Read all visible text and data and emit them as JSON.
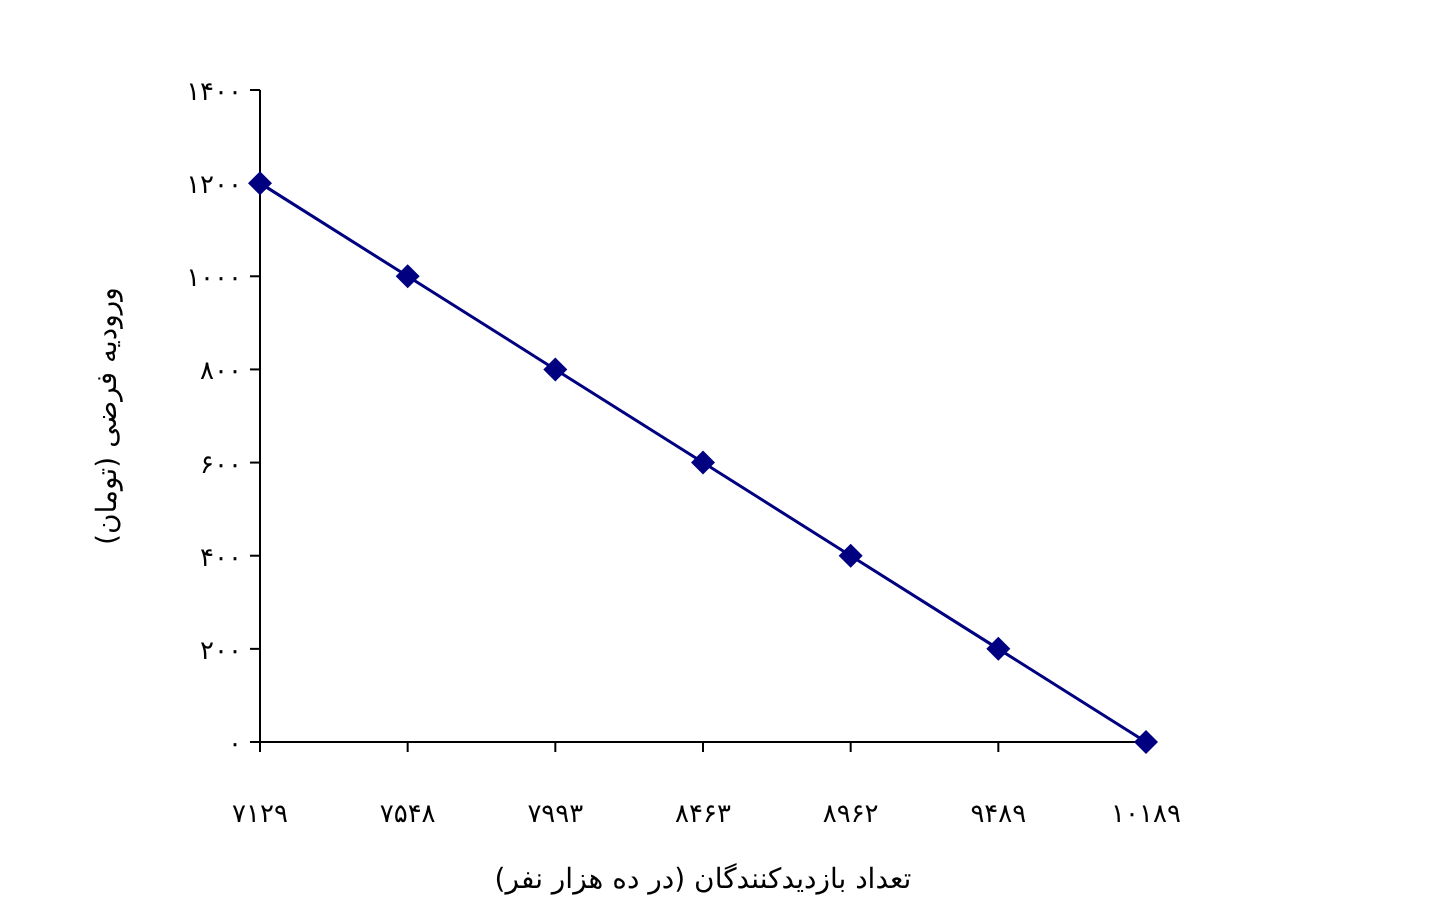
{
  "chart_data": {
    "type": "line",
    "xlabel": "تعداد بازدیدکنندگان (در ده هزار نفر)",
    "ylabel": "ورودیه فرضی (تومان)",
    "categories": [
      "۷۱۲۹",
      "۷۵۴۸",
      "۷۹۹۳",
      "۸۴۶۳",
      "۸۹۶۲",
      "۹۴۸۹",
      "۱۰۱۸۹"
    ],
    "series": [
      {
        "color": "#000080",
        "values": [
          1200,
          1000,
          800,
          600,
          400,
          200,
          0
        ]
      }
    ],
    "ylim": [
      0,
      1400
    ],
    "yticks": [
      {
        "value": 0,
        "label": "۰"
      },
      {
        "value": 200,
        "label": "۲۰۰"
      },
      {
        "value": 400,
        "label": "۴۰۰"
      },
      {
        "value": 600,
        "label": "۶۰۰"
      },
      {
        "value": 800,
        "label": "۸۰۰"
      },
      {
        "value": 1000,
        "label": "۱۰۰۰"
      },
      {
        "value": 1200,
        "label": "۱۲۰۰"
      },
      {
        "value": 1400,
        "label": "۱۴۰۰"
      }
    ],
    "marker": "diamond",
    "line_style": "solid"
  }
}
